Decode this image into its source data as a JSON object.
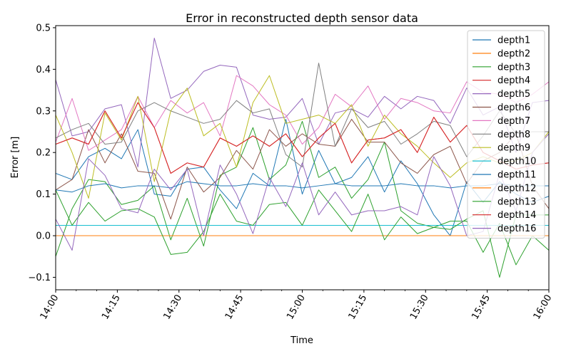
{
  "chart_data": {
    "type": "line",
    "title": "Error in reconstructed depth sensor data",
    "xlabel": "Time",
    "ylabel": "Error [m]",
    "xlim": [
      "14:00",
      "16:00"
    ],
    "ylim": [
      -0.13,
      0.505
    ],
    "x_major_ticks": [
      "14:00",
      "14:15",
      "14:30",
      "14:45",
      "15:00",
      "15:15",
      "15:30",
      "15:45",
      "16:00"
    ],
    "x_minor_ticks": [
      "14:05",
      "14:10",
      "14:20",
      "14:25",
      "14:35",
      "14:40",
      "14:50",
      "14:55",
      "15:05",
      "15:10",
      "15:20",
      "15:25",
      "15:35",
      "15:40",
      "15:50",
      "15:55"
    ],
    "y_ticks": [
      -0.1,
      0.0,
      0.1,
      0.2,
      0.3,
      0.4,
      0.5
    ],
    "y_tick_labels": [
      "−0.1",
      "0.0",
      "0.1",
      "0.2",
      "0.3",
      "0.4",
      "0.5"
    ],
    "grid": false,
    "legend_position": "upper right",
    "x": [
      "14:00",
      "14:04",
      "14:08",
      "14:12",
      "14:16",
      "14:20",
      "14:24",
      "14:28",
      "14:32",
      "14:36",
      "14:40",
      "14:44",
      "14:48",
      "14:52",
      "14:56",
      "15:00",
      "15:04",
      "15:08",
      "15:12",
      "15:16",
      "15:20",
      "15:24",
      "15:28",
      "15:32",
      "15:36",
      "15:40",
      "15:44",
      "15:48",
      "15:52",
      "15:56",
      "16:00"
    ],
    "series": [
      {
        "name": "depth1",
        "color": "#1f77b4",
        "values": [
          0.15,
          0.135,
          0.19,
          0.21,
          0.185,
          0.255,
          0.1,
          0.095,
          0.16,
          0.165,
          0.11,
          0.065,
          0.15,
          0.12,
          0.28,
          0.1,
          0.205,
          0.125,
          0.14,
          0.19,
          0.105,
          0.18,
          0.125,
          0.05,
          0.0,
          0.13,
          0.08,
          0.13,
          0.1,
          0.08,
          0.095
        ]
      },
      {
        "name": "depth2",
        "color": "#ff7f0e",
        "values": [
          0,
          0,
          0,
          0,
          0,
          0,
          0,
          0,
          0,
          0,
          0,
          0,
          0,
          0,
          0,
          0,
          0,
          0,
          0,
          0,
          0,
          0,
          0,
          0,
          0,
          0,
          0,
          0,
          0,
          0,
          0
        ]
      },
      {
        "name": "depth3",
        "color": "#2ca02c",
        "values": [
          -0.05,
          0.065,
          0.135,
          0.13,
          0.075,
          0.085,
          0.12,
          -0.01,
          0.09,
          -0.025,
          0.145,
          0.165,
          0.26,
          0.135,
          0.17,
          0.275,
          0.14,
          0.165,
          0.09,
          0.135,
          0.225,
          0.06,
          0.03,
          0.02,
          0.035,
          0.035,
          -0.04,
          0.03,
          -0.07,
          0.0,
          -0.035
        ]
      },
      {
        "name": "depth4",
        "color": "#d62728",
        "values": [
          0.22,
          0.235,
          0.22,
          0.3,
          0.235,
          0.32,
          0.26,
          0.15,
          0.175,
          0.165,
          0.235,
          0.215,
          0.24,
          0.215,
          0.245,
          0.19,
          0.235,
          0.27,
          0.175,
          0.23,
          0.235,
          0.255,
          0.2,
          0.285,
          0.225,
          0.265,
          0.2,
          0.18,
          0.16,
          0.17,
          0.175
        ]
      },
      {
        "name": "depth5",
        "color": "#9467bd",
        "values": [
          0.375,
          0.24,
          0.25,
          0.305,
          0.315,
          0.165,
          0.475,
          0.33,
          0.35,
          0.395,
          0.41,
          0.405,
          0.29,
          0.28,
          0.285,
          0.33,
          0.22,
          0.295,
          0.305,
          0.285,
          0.335,
          0.305,
          0.335,
          0.325,
          0.27,
          0.355,
          0.29,
          0.31,
          0.2,
          0.32,
          0.325
        ]
      },
      {
        "name": "depth6",
        "color": "#8c564b",
        "values": [
          0.11,
          0.135,
          0.255,
          0.175,
          0.245,
          0.155,
          0.15,
          0.04,
          0.165,
          0.105,
          0.14,
          0.205,
          0.16,
          0.255,
          0.215,
          0.245,
          0.22,
          0.215,
          0.28,
          0.225,
          0.225,
          0.175,
          0.15,
          0.195,
          0.215,
          0.125,
          0.18,
          0.2,
          0.245,
          0.12,
          0.065
        ]
      },
      {
        "name": "depth7",
        "color": "#e377c2",
        "values": [
          0.225,
          0.33,
          0.205,
          0.23,
          0.255,
          0.335,
          0.26,
          0.325,
          0.295,
          0.32,
          0.24,
          0.385,
          0.36,
          0.315,
          0.29,
          0.22,
          0.26,
          0.34,
          0.31,
          0.36,
          0.28,
          0.33,
          0.32,
          0.3,
          0.295,
          0.37,
          0.345,
          0.34,
          0.32,
          0.34,
          0.37
        ]
      },
      {
        "name": "depth8",
        "color": "#7f7f7f",
        "values": [
          0.235,
          0.255,
          0.27,
          0.22,
          0.225,
          0.3,
          0.32,
          0.3,
          0.285,
          0.27,
          0.28,
          0.325,
          0.295,
          0.305,
          0.195,
          0.165,
          0.415,
          0.215,
          0.305,
          0.26,
          0.275,
          0.22,
          0.245,
          0.275,
          0.265,
          0.19,
          0.24,
          0.3,
          0.245,
          0.25,
          0.25
        ]
      },
      {
        "name": "depth9",
        "color": "#bcbd22",
        "values": [
          0.29,
          0.2,
          0.09,
          0.295,
          0.23,
          0.335,
          0.13,
          0.3,
          0.355,
          0.24,
          0.27,
          0.165,
          0.32,
          0.385,
          0.27,
          0.28,
          0.29,
          0.27,
          0.315,
          0.215,
          0.29,
          0.245,
          0.215,
          0.175,
          0.14,
          0.175,
          0.19,
          0.175,
          0.18,
          0.2,
          0.25
        ]
      },
      {
        "name": "depth10",
        "color": "#17becf",
        "values": [
          0.025,
          0.025,
          0.025,
          0.025,
          0.025,
          0.025,
          0.025,
          0.025,
          0.025,
          0.025,
          0.025,
          0.025,
          0.025,
          0.025,
          0.025,
          0.025,
          0.025,
          0.025,
          0.025,
          0.025,
          0.025,
          0.025,
          0.025,
          0.025,
          0.025,
          0.025,
          0.025,
          0.025,
          0.025,
          0.025,
          0.025
        ]
      },
      {
        "name": "depth11",
        "color": "#1f77b4",
        "values": [
          0.11,
          0.105,
          0.12,
          0.125,
          0.115,
          0.12,
          0.12,
          0.115,
          0.13,
          0.125,
          0.12,
          0.12,
          0.125,
          0.12,
          0.12,
          0.115,
          0.12,
          0.125,
          0.12,
          0.12,
          0.12,
          0.125,
          0.12,
          0.12,
          0.115,
          0.12,
          0.12,
          0.125,
          0.12,
          0.12,
          0.12
        ]
      },
      {
        "name": "depth12",
        "color": "#ff7f0e",
        "values": [
          0,
          0,
          0,
          0,
          0,
          0,
          0,
          0,
          0,
          0,
          0,
          0,
          0,
          0,
          0,
          0,
          0,
          0,
          0,
          0,
          0,
          0,
          0,
          0,
          0,
          0,
          0,
          0,
          0,
          0,
          0
        ]
      },
      {
        "name": "depth13",
        "color": "#2ca02c",
        "values": [
          0.11,
          0.025,
          0.08,
          0.035,
          0.06,
          0.065,
          0.045,
          -0.045,
          -0.04,
          0.01,
          0.1,
          0.035,
          0.025,
          0.075,
          0.08,
          0.025,
          0.11,
          0.06,
          0.01,
          0.1,
          -0.01,
          0.045,
          0.005,
          0.02,
          0.015,
          0.04,
          0.06,
          -0.1,
          0.05,
          0.05,
          0.05
        ]
      },
      {
        "name": "depth14",
        "color": "#d62728",
        "values": [
          0.22,
          0.235,
          0.22,
          0.3,
          0.235,
          0.32,
          0.26,
          0.15,
          0.175,
          0.165,
          0.235,
          0.215,
          0.24,
          0.215,
          0.245,
          0.19,
          0.235,
          0.27,
          0.175,
          0.23,
          0.235,
          0.255,
          0.2,
          0.285,
          0.225,
          0.265,
          0.2,
          0.18,
          0.16,
          0.17,
          0.175
        ]
      },
      {
        "name": "depth16",
        "color": "#9467bd",
        "values": [
          0.04,
          -0.035,
          0.185,
          0.145,
          0.065,
          0.055,
          0.16,
          0.11,
          0.16,
          0.0,
          0.17,
          0.1,
          0.005,
          0.14,
          0.07,
          0.175,
          0.05,
          0.105,
          0.05,
          0.06,
          0.06,
          0.07,
          0.05,
          0.19,
          0.12,
          0.0,
          0.01,
          0.15,
          0.06,
          0.2,
          0.245
        ]
      }
    ]
  }
}
